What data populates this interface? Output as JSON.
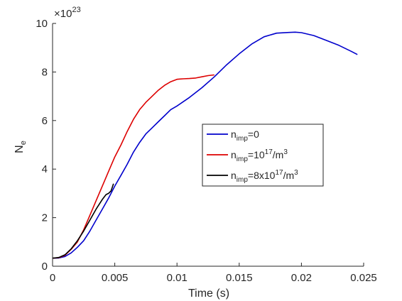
{
  "chart_data": {
    "type": "line",
    "title": "",
    "xlabel": "Time (s)",
    "ylabel": {
      "main": "N",
      "sub": "e"
    },
    "exponent": {
      "base": "×10",
      "power": "23"
    },
    "xlim": [
      0,
      0.025
    ],
    "ylim": [
      0,
      10
    ],
    "xticks": [
      0,
      0.005,
      0.01,
      0.015,
      0.02,
      0.025
    ],
    "xtick_labels": [
      "0",
      "0.005",
      "0.01",
      "0.015",
      "0.02",
      "0.025"
    ],
    "yticks": [
      0,
      2,
      4,
      6,
      8,
      10
    ],
    "ytick_labels": [
      "0",
      "2",
      "4",
      "6",
      "8",
      "10"
    ],
    "grid": false,
    "legend_position": "center-right",
    "series": [
      {
        "legend": {
          "n": "n",
          "sub": "imp",
          "rest": "=0",
          "sup": "",
          "tail": ""
        },
        "color": "#0000cc",
        "x": [
          0,
          0.0005,
          0.001,
          0.0015,
          0.002,
          0.0025,
          0.003,
          0.0035,
          0.004,
          0.0045,
          0.005,
          0.0055,
          0.006,
          0.0065,
          0.007,
          0.0075,
          0.008,
          0.0085,
          0.009,
          0.0095,
          0.01,
          0.011,
          0.012,
          0.013,
          0.014,
          0.015,
          0.016,
          0.017,
          0.018,
          0.019,
          0.0195,
          0.02,
          0.021,
          0.022,
          0.023,
          0.024,
          0.0245
        ],
        "y": [
          0.33,
          0.34,
          0.4,
          0.55,
          0.78,
          1.05,
          1.45,
          1.9,
          2.35,
          2.8,
          3.3,
          3.75,
          4.2,
          4.7,
          5.1,
          5.45,
          5.7,
          5.95,
          6.2,
          6.45,
          6.6,
          6.95,
          7.35,
          7.8,
          8.3,
          8.75,
          9.15,
          9.45,
          9.6,
          9.63,
          9.64,
          9.62,
          9.5,
          9.3,
          9.1,
          8.85,
          8.72
        ]
      },
      {
        "legend": {
          "n": "n",
          "sub": "imp",
          "rest": "=10",
          "sup": "17",
          "tail": "/m",
          "sup2": "3"
        },
        "color": "#dd0000",
        "x": [
          0,
          0.0005,
          0.001,
          0.0015,
          0.002,
          0.0025,
          0.003,
          0.0035,
          0.004,
          0.0045,
          0.005,
          0.0055,
          0.006,
          0.0065,
          0.007,
          0.0075,
          0.008,
          0.0085,
          0.009,
          0.0095,
          0.01,
          0.0105,
          0.011,
          0.0115,
          0.012,
          0.0125,
          0.013
        ],
        "y": [
          0.33,
          0.35,
          0.45,
          0.7,
          1.0,
          1.5,
          2.1,
          2.7,
          3.3,
          3.9,
          4.5,
          5.0,
          5.55,
          6.05,
          6.45,
          6.75,
          7.0,
          7.25,
          7.45,
          7.6,
          7.7,
          7.72,
          7.73,
          7.75,
          7.8,
          7.85,
          7.88
        ]
      },
      {
        "legend": {
          "n": "n",
          "sub": "imp",
          "rest": "=8x10",
          "sup": "17",
          "tail": "/m",
          "sup2": "3"
        },
        "color": "#000000",
        "x": [
          0,
          0.0005,
          0.001,
          0.0015,
          0.002,
          0.0025,
          0.003,
          0.0035,
          0.004,
          0.0043,
          0.0045,
          0.0047,
          0.0048,
          0.0049
        ],
        "y": [
          0.33,
          0.36,
          0.47,
          0.72,
          1.05,
          1.45,
          1.9,
          2.35,
          2.75,
          2.95,
          3.0,
          3.1,
          3.25,
          3.4
        ]
      }
    ]
  }
}
